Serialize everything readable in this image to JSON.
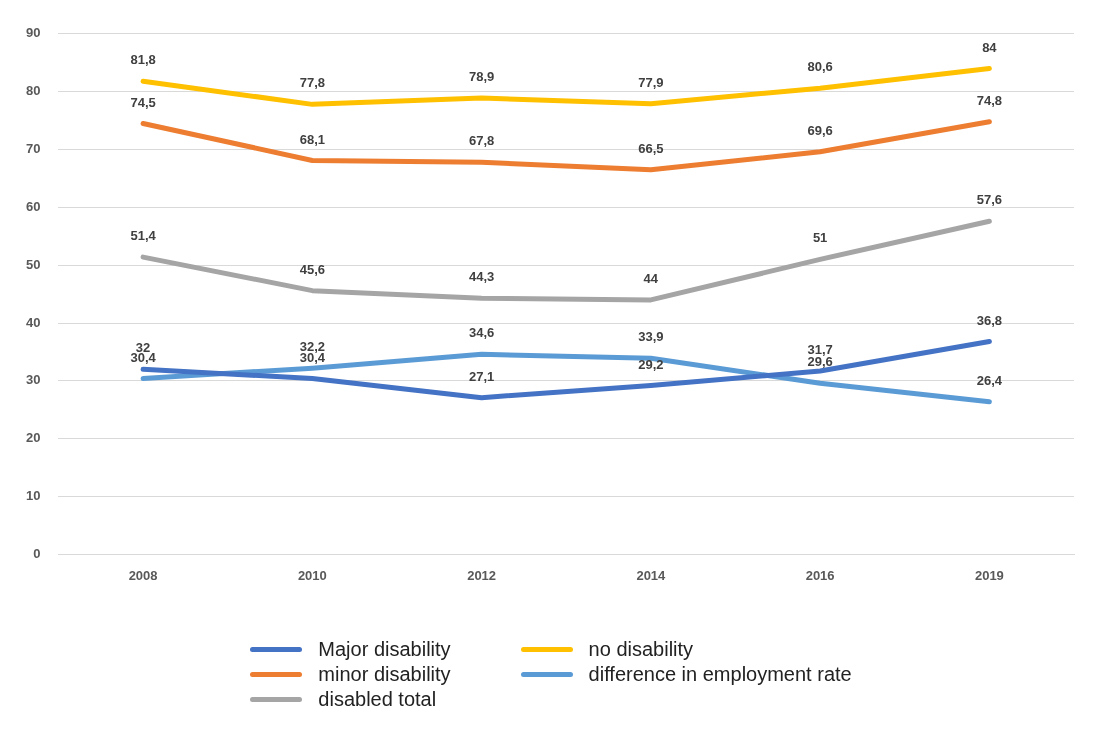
{
  "chart_data": {
    "type": "line",
    "categories": [
      "2008",
      "2010",
      "2012",
      "2014",
      "2016",
      "2019"
    ],
    "ylim": [
      0,
      90
    ],
    "yticks": [
      0,
      10,
      20,
      30,
      40,
      50,
      60,
      70,
      80,
      90
    ],
    "grid": "y",
    "legend": "bottom",
    "marker": "none",
    "line_style": "solid",
    "series": [
      {
        "name": "Major disability",
        "color": "#4472c4",
        "values": [
          32,
          30.4,
          27.1,
          29.2,
          31.7,
          36.8
        ],
        "value_labels": [
          "32",
          "30,4",
          "27,1",
          "29,2",
          "31,7",
          "36,8"
        ]
      },
      {
        "name": "minor disability",
        "color": "#ed7d31",
        "values": [
          74.5,
          68.1,
          67.8,
          66.5,
          69.6,
          74.8
        ],
        "value_labels": [
          "74,5",
          "68,1",
          "67,8",
          "66,5",
          "69,6",
          "74,8"
        ]
      },
      {
        "name": "disabled total",
        "color": "#a5a5a5",
        "values": [
          51.4,
          45.6,
          44.3,
          44,
          51,
          57.6
        ],
        "value_labels": [
          "51,4",
          "45,6",
          "44,3",
          "44",
          "51",
          "57,6"
        ]
      },
      {
        "name": "no disability",
        "color": "#ffc000",
        "values": [
          81.8,
          77.8,
          78.9,
          77.9,
          80.6,
          84
        ],
        "value_labels": [
          "81,8",
          "77,8",
          "78,9",
          "77,9",
          "80,6",
          "84"
        ]
      },
      {
        "name": "difference in employment rate",
        "color": "#5b9bd5",
        "values": [
          30.4,
          32.2,
          34.6,
          33.9,
          29.6,
          26.4
        ],
        "value_labels": [
          "30,4",
          "32,2",
          "34,6",
          "33,9",
          "29,6",
          "26,4"
        ]
      }
    ]
  }
}
